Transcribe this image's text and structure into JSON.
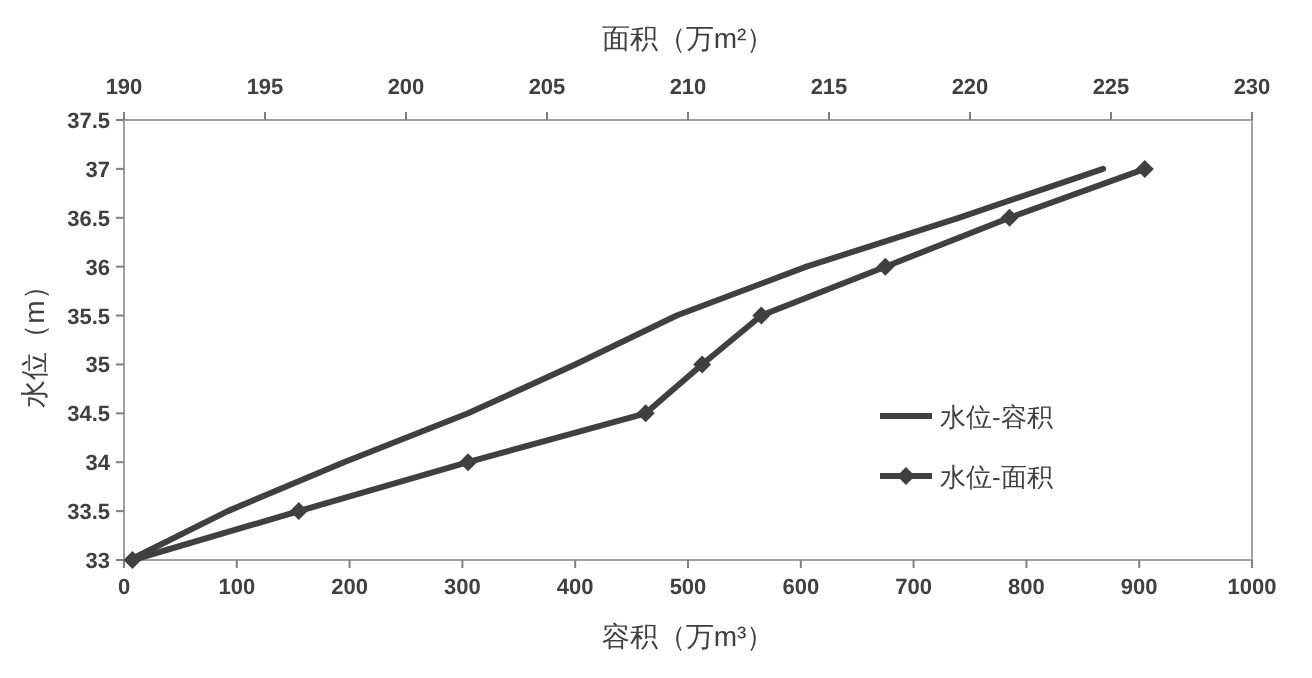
{
  "chart_data": {
    "type": "line",
    "xlabel": "容积（万m³）",
    "x2label": "面积（万m²）",
    "ylabel": "水位（m）",
    "xlim": [
      0,
      1000
    ],
    "xticks": [
      0,
      100,
      200,
      300,
      400,
      500,
      600,
      700,
      800,
      900,
      1000
    ],
    "x2lim": [
      190,
      230
    ],
    "x2ticks": [
      190,
      195,
      200,
      205,
      210,
      215,
      220,
      225,
      230
    ],
    "ylim": [
      33,
      37.5
    ],
    "yticks": [
      33,
      33.5,
      34,
      34.5,
      35,
      35.5,
      36,
      36.5,
      37,
      37.5
    ],
    "grid": false,
    "legend": "right",
    "line_style": "solid",
    "series": [
      {
        "name": "水位-容积",
        "color": "#404040",
        "marker": "none",
        "x": [
          5,
          92,
          195,
          305,
          400,
          490,
          605,
          740,
          868
        ],
        "values": [
          33,
          33.5,
          34,
          34.5,
          35,
          35.5,
          36,
          36.5,
          37
        ]
      },
      {
        "name": "水位-面积",
        "color": "#404040",
        "marker": "diamond",
        "axis": "x2",
        "x": [
          190.3,
          196.2,
          202.2,
          208.5,
          210.5,
          212.6,
          217.0,
          221.4,
          226.2
        ],
        "values": [
          33,
          33.5,
          34,
          34.5,
          35,
          35.5,
          36,
          36.5,
          37
        ]
      }
    ]
  }
}
